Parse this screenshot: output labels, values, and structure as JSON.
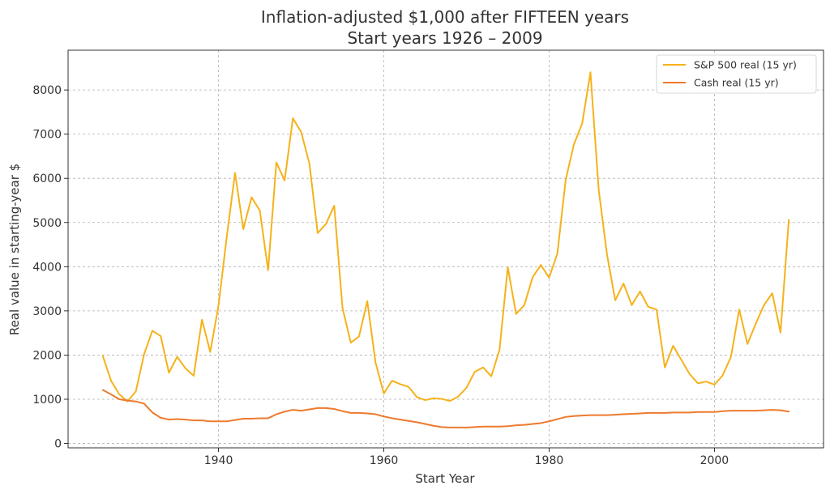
{
  "chart_data": {
    "type": "line",
    "title": "Inflation-adjusted $1,000 after FIFTEEN years",
    "subtitle": "Start years 1926 – 2009",
    "xlabel": "Start Year",
    "ylabel": "Real value in starting-year $",
    "xlim": [
      1921.8,
      2013.2
    ],
    "ylim": [
      -100,
      8900
    ],
    "x_ticks": [
      1940,
      1960,
      1980,
      2000
    ],
    "y_ticks": [
      0,
      1000,
      2000,
      3000,
      4000,
      5000,
      6000,
      7000,
      8000
    ],
    "grid": true,
    "legend_position": "top-right",
    "x": [
      1926,
      1927,
      1928,
      1929,
      1930,
      1931,
      1932,
      1933,
      1934,
      1935,
      1936,
      1937,
      1938,
      1939,
      1940,
      1941,
      1942,
      1943,
      1944,
      1945,
      1946,
      1947,
      1948,
      1949,
      1950,
      1951,
      1952,
      1953,
      1954,
      1955,
      1956,
      1957,
      1958,
      1959,
      1960,
      1961,
      1962,
      1963,
      1964,
      1965,
      1966,
      1967,
      1968,
      1969,
      1970,
      1971,
      1972,
      1973,
      1974,
      1975,
      1976,
      1977,
      1978,
      1979,
      1980,
      1981,
      1982,
      1983,
      1984,
      1985,
      1986,
      1987,
      1988,
      1989,
      1990,
      1991,
      1992,
      1993,
      1994,
      1995,
      1996,
      1997,
      1998,
      1999,
      2000,
      2001,
      2002,
      2003,
      2004,
      2005,
      2006,
      2007,
      2008,
      2009
    ],
    "series": [
      {
        "name": "S&P 500 real (15 yr)",
        "color": "#f5b21a",
        "values": [
          1980,
          1420,
          1110,
          950,
          1180,
          2020,
          2550,
          2430,
          1600,
          1960,
          1700,
          1530,
          2800,
          2070,
          3120,
          4680,
          6120,
          4850,
          5570,
          5270,
          3920,
          6360,
          5950,
          7360,
          7050,
          6330,
          4760,
          4970,
          5380,
          3070,
          2280,
          2420,
          3220,
          1830,
          1130,
          1420,
          1340,
          1280,
          1050,
          980,
          1020,
          1010,
          960,
          1060,
          1260,
          1620,
          1720,
          1520,
          2120,
          3990,
          2930,
          3130,
          3760,
          4040,
          3750,
          4300,
          5960,
          6770,
          7240,
          8400,
          5740,
          4280,
          3240,
          3620,
          3130,
          3440,
          3090,
          3030,
          1720,
          2210,
          1890,
          1570,
          1360,
          1400,
          1330,
          1540,
          1960,
          3030,
          2250,
          2710,
          3130,
          3400,
          2510,
          5060
        ]
      },
      {
        "name": "Cash real (15 yr)",
        "color": "#ee7a2d",
        "values": [
          1210,
          1110,
          1000,
          970,
          950,
          900,
          700,
          580,
          540,
          550,
          540,
          520,
          520,
          500,
          500,
          500,
          530,
          560,
          560,
          570,
          570,
          660,
          720,
          760,
          740,
          770,
          800,
          800,
          780,
          730,
          690,
          690,
          680,
          660,
          610,
          570,
          540,
          510,
          480,
          440,
          400,
          370,
          360,
          360,
          360,
          370,
          380,
          380,
          380,
          390,
          410,
          420,
          440,
          460,
          500,
          550,
          600,
          620,
          630,
          640,
          640,
          640,
          650,
          660,
          670,
          680,
          690,
          690,
          690,
          700,
          700,
          700,
          710,
          710,
          710,
          730,
          740,
          740,
          740,
          740,
          750,
          760,
          750,
          720
        ]
      }
    ]
  }
}
